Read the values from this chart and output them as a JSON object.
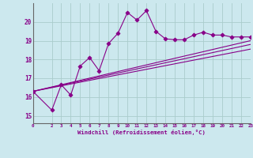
{
  "xlabel": "Windchill (Refroidissement éolien,°C)",
  "bg_color": "#cce8ee",
  "grid_color": "#aacccc",
  "line_color": "#880088",
  "xlim": [
    0,
    23
  ],
  "ylim": [
    14.6,
    21.0
  ],
  "x_ticks": [
    0,
    2,
    3,
    4,
    5,
    6,
    7,
    8,
    9,
    10,
    11,
    12,
    13,
    14,
    15,
    16,
    17,
    18,
    19,
    20,
    21,
    22,
    23
  ],
  "y_ticks": [
    15,
    16,
    17,
    18,
    19,
    20
  ],
  "series1_x": [
    0,
    2,
    3,
    4,
    5,
    6,
    7,
    8,
    9,
    10,
    11,
    12,
    13,
    14,
    15,
    16,
    17,
    18,
    19,
    20,
    21,
    22,
    23
  ],
  "series1_y": [
    16.3,
    15.3,
    16.65,
    16.1,
    17.65,
    18.1,
    17.4,
    18.85,
    19.4,
    20.5,
    20.1,
    20.6,
    19.5,
    19.1,
    19.05,
    19.05,
    19.3,
    19.45,
    19.3,
    19.3,
    19.2,
    19.2,
    19.2
  ],
  "series2_x": [
    0,
    23
  ],
  "series2_y": [
    16.3,
    19.0
  ],
  "series3_x": [
    0,
    23
  ],
  "series3_y": [
    16.3,
    18.8
  ],
  "series4_x": [
    0,
    23
  ],
  "series4_y": [
    16.3,
    18.55
  ]
}
